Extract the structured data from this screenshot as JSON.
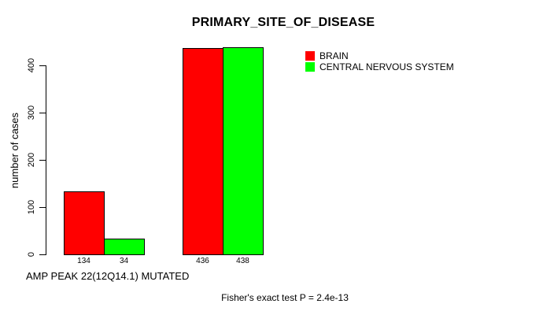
{
  "chart_data": {
    "type": "bar",
    "title": "PRIMARY_SITE_OF_DISEASE",
    "ylabel": "number of cases",
    "xlabel": "AMP PEAK 22(12Q14.1) MUTATED",
    "annotation": "Fisher's exact test P = 2.4e-13",
    "y_ticks": [
      0,
      100,
      200,
      300,
      400
    ],
    "ylim": [
      0,
      440
    ],
    "grid": false,
    "legend_position": "top-right",
    "groups": 2,
    "series": [
      {
        "name": "BRAIN",
        "color": "#ff0000",
        "values": [
          134,
          436
        ]
      },
      {
        "name": "CENTRAL NERVOUS SYSTEM",
        "color": "#00ff00",
        "values": [
          34,
          438
        ]
      }
    ],
    "bar_value_labels": [
      "134",
      "34",
      "436",
      "438"
    ],
    "axis_color": "#000000",
    "text_color": "#000000"
  }
}
